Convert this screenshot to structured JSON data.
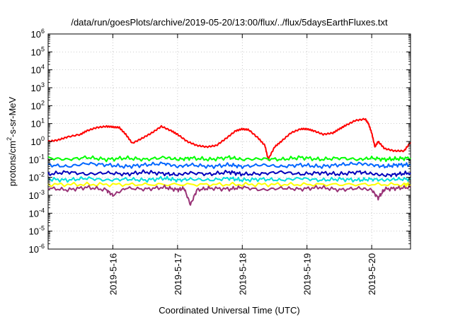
{
  "chart_data": {
    "type": "line",
    "title": "/data/run/goesPlots/archive/2019-05-20/13:00/flux/../flux/5daysEarthFluxes.txt",
    "xlabel": "Coordinated Universal Time (UTC)",
    "ylabel": "protons/cm2-s-sr-MeV",
    "ylabel_parts": {
      "pre": "protons/cm",
      "sup": "2",
      "post": "-s-sr-MeV"
    },
    "scale": "log",
    "ylim": [
      1e-06,
      1000000.0
    ],
    "xlim": [
      0,
      5.6
    ],
    "y_ticks": [
      {
        "base": "10",
        "exp": "-6",
        "value": 1e-06
      },
      {
        "base": "10",
        "exp": "-5",
        "value": 1e-05
      },
      {
        "base": "10",
        "exp": "-4",
        "value": 0.0001
      },
      {
        "base": "10",
        "exp": "-3",
        "value": 0.001
      },
      {
        "base": "10",
        "exp": "-2",
        "value": 0.01
      },
      {
        "base": "10",
        "exp": "-1",
        "value": 0.1
      },
      {
        "base": "10",
        "exp": "0",
        "value": 1
      },
      {
        "base": "10",
        "exp": "1",
        "value": 10
      },
      {
        "base": "10",
        "exp": "2",
        "value": 100
      },
      {
        "base": "10",
        "exp": "3",
        "value": 1000
      },
      {
        "base": "10",
        "exp": "4",
        "value": 10000
      },
      {
        "base": "10",
        "exp": "5",
        "value": 100000
      },
      {
        "base": "10",
        "exp": "6",
        "value": 1000000
      }
    ],
    "x_ticks": [
      {
        "label": "2019-5-16",
        "x": 1
      },
      {
        "label": "2019-5-17",
        "x": 2
      },
      {
        "label": "2019-5-18",
        "x": 3
      },
      {
        "label": "2019-5-19",
        "x": 4
      },
      {
        "label": "2019-5-20",
        "x": 5
      }
    ],
    "series": [
      {
        "color": "#ff0000",
        "x": [
          0,
          0.15,
          0.3,
          0.5,
          0.6,
          0.75,
          0.9,
          1.0,
          1.1,
          1.2,
          1.3,
          1.45,
          1.6,
          1.75,
          1.9,
          2.0,
          2.15,
          2.3,
          2.45,
          2.6,
          2.75,
          2.9,
          3.0,
          3.1,
          3.25,
          3.35,
          3.4,
          3.5,
          3.6,
          3.75,
          3.9,
          4.0,
          4.1,
          4.25,
          4.4,
          4.5,
          4.6,
          4.75,
          4.9,
          4.95,
          5.0,
          5.05,
          5.1,
          5.2,
          5.35,
          5.5,
          5.6
        ],
        "y": [
          1.0,
          1.2,
          1.8,
          2.5,
          4.0,
          6.0,
          7.0,
          6.5,
          6.0,
          2.5,
          0.8,
          1.5,
          3.0,
          7.0,
          4.0,
          2.5,
          1.0,
          0.6,
          0.5,
          0.6,
          1.5,
          4.0,
          5.0,
          4.5,
          1.5,
          0.6,
          0.1,
          0.5,
          1.0,
          3.0,
          5.0,
          5.0,
          4.0,
          2.5,
          3.0,
          5.0,
          8.0,
          15.0,
          18.0,
          10.0,
          3.0,
          0.5,
          1.0,
          0.4,
          0.3,
          0.3,
          0.9
        ]
      },
      {
        "color": "#00ff00",
        "x": [
          0,
          0.3,
          0.6,
          0.9,
          1.2,
          1.5,
          1.8,
          2.0,
          2.2,
          2.5,
          2.8,
          3.0,
          3.3,
          3.6,
          3.9,
          4.2,
          4.5,
          4.8,
          5.0,
          5.2,
          5.4,
          5.6
        ],
        "y": [
          0.12,
          0.1,
          0.13,
          0.1,
          0.12,
          0.1,
          0.13,
          0.1,
          0.12,
          0.1,
          0.13,
          0.1,
          0.11,
          0.1,
          0.13,
          0.1,
          0.12,
          0.1,
          0.12,
          0.1,
          0.11,
          0.12
        ]
      },
      {
        "color": "#0066ff",
        "x": [
          0,
          0.3,
          0.6,
          0.9,
          1.2,
          1.5,
          1.8,
          2.0,
          2.2,
          2.5,
          2.8,
          3.0,
          3.3,
          3.6,
          3.9,
          4.2,
          4.5,
          4.8,
          5.0,
          5.2,
          5.4,
          5.6
        ],
        "y": [
          0.05,
          0.04,
          0.06,
          0.05,
          0.04,
          0.05,
          0.06,
          0.04,
          0.05,
          0.04,
          0.05,
          0.04,
          0.05,
          0.04,
          0.05,
          0.04,
          0.05,
          0.06,
          0.05,
          0.04,
          0.05,
          0.05
        ]
      },
      {
        "color": "#0000bb",
        "x": [
          0,
          0.3,
          0.6,
          0.9,
          1.2,
          1.5,
          1.8,
          2.0,
          2.2,
          2.5,
          2.8,
          3.0,
          3.3,
          3.6,
          3.9,
          4.2,
          4.5,
          4.8,
          5.0,
          5.2,
          5.4,
          5.6
        ],
        "y": [
          0.015,
          0.02,
          0.015,
          0.018,
          0.015,
          0.02,
          0.016,
          0.014,
          0.018,
          0.015,
          0.02,
          0.015,
          0.016,
          0.02,
          0.015,
          0.018,
          0.015,
          0.02,
          0.016,
          0.013,
          0.015,
          0.018
        ]
      },
      {
        "color": "#00dddd",
        "x": [
          0,
          0.3,
          0.6,
          0.9,
          1.2,
          1.5,
          1.8,
          2.0,
          2.2,
          2.5,
          2.8,
          3.0,
          3.3,
          3.6,
          3.9,
          4.2,
          4.5,
          4.8,
          5.0,
          5.2,
          5.4,
          5.6
        ],
        "y": [
          0.008,
          0.007,
          0.009,
          0.007,
          0.008,
          0.007,
          0.009,
          0.007,
          0.008,
          0.007,
          0.009,
          0.007,
          0.008,
          0.007,
          0.009,
          0.007,
          0.008,
          0.007,
          0.008,
          0.007,
          0.008,
          0.008
        ]
      },
      {
        "color": "#ffff00",
        "x": [
          0,
          0.5,
          1.0,
          1.5,
          2.0,
          2.5,
          3.0,
          3.5,
          4.0,
          4.5,
          5.0,
          5.5,
          5.6
        ],
        "y": [
          0.004,
          0.004,
          0.004,
          0.004,
          0.004,
          0.004,
          0.004,
          0.004,
          0.004,
          0.004,
          0.004,
          0.004,
          0.004
        ]
      },
      {
        "color": "#993377",
        "x": [
          0,
          0.3,
          0.6,
          0.9,
          1.0,
          1.2,
          1.5,
          1.8,
          2.0,
          2.1,
          2.2,
          2.3,
          2.5,
          2.8,
          3.0,
          3.3,
          3.6,
          3.9,
          4.2,
          4.5,
          4.8,
          5.0,
          5.1,
          5.2,
          5.4,
          5.6
        ],
        "y": [
          0.0025,
          0.002,
          0.0028,
          0.002,
          0.001,
          0.0025,
          0.0022,
          0.0028,
          0.002,
          0.0025,
          0.0003,
          0.002,
          0.0025,
          0.0022,
          0.0028,
          0.002,
          0.0025,
          0.0022,
          0.0028,
          0.002,
          0.0025,
          0.002,
          0.0007,
          0.0022,
          0.0025,
          0.0028
        ]
      }
    ]
  }
}
